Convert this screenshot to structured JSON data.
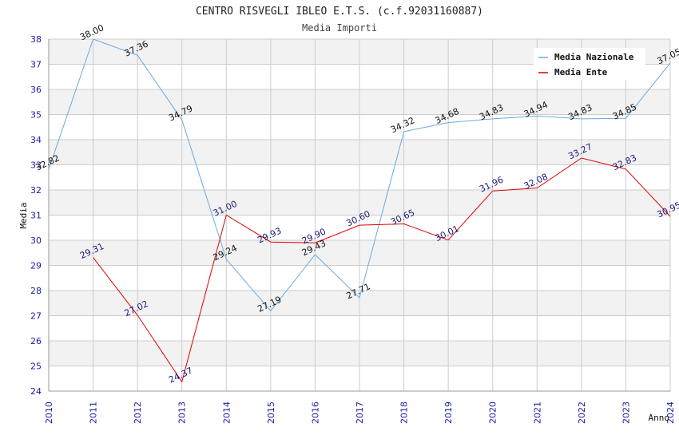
{
  "colors": {
    "nazionale": "#6aa9e0",
    "ente": "#e00000",
    "tick": "#1a1aa6",
    "label_nazionale": "#111111",
    "label_ente": "#1a1a7a",
    "band": "#f2f2f2",
    "grid": "#cccccc"
  },
  "chart_data": {
    "type": "line",
    "title": "CENTRO RISVEGLI IBLEO E.T.S. (c.f.92031160887)",
    "subtitle": "Media Importi",
    "xlabel": "Anno",
    "ylabel": "Media",
    "ylim": [
      24,
      38
    ],
    "yticks": [
      24,
      25,
      26,
      27,
      28,
      29,
      30,
      31,
      32,
      33,
      34,
      35,
      36,
      37,
      38
    ],
    "x": [
      2010,
      2011,
      2012,
      2013,
      2014,
      2015,
      2016,
      2017,
      2018,
      2019,
      2020,
      2021,
      2022,
      2023,
      2024
    ],
    "legend_position": "top-right",
    "series": [
      {
        "name": "Media Nazionale",
        "key": "nazionale",
        "values": [
          32.82,
          38.0,
          37.36,
          34.79,
          29.24,
          27.19,
          29.43,
          27.71,
          34.32,
          34.68,
          34.83,
          34.94,
          34.83,
          34.85,
          37.05
        ],
        "labels": [
          "32.82",
          "38.00",
          "37.36",
          "34.79",
          "29.24",
          "27.19",
          "29.43",
          "27.71",
          "34.32",
          "34.68",
          "34.83",
          "34.94",
          "34.83",
          "34.85",
          "37.05"
        ]
      },
      {
        "name": "Media Ente",
        "key": "ente",
        "values": [
          null,
          29.31,
          27.02,
          24.37,
          31.0,
          29.93,
          29.9,
          30.6,
          30.65,
          30.01,
          31.96,
          32.08,
          33.27,
          32.83,
          30.95
        ],
        "labels": [
          "",
          "29.31",
          "27.02",
          "24.37",
          "31.00",
          "29.93",
          "29.90",
          "30.60",
          "30.65",
          "30.01",
          "31.96",
          "32.08",
          "33.27",
          "32.83",
          "30.95"
        ]
      }
    ]
  }
}
